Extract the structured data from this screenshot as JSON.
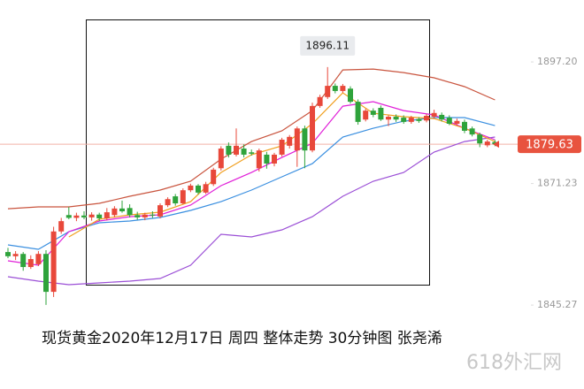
{
  "chart_data": {
    "type": "candlestick",
    "title": "现货黄金2020年12月17日 周四 整体走势  30分钟图 张尧浠",
    "watermark": "618外汇网",
    "up_color": "#e8483a",
    "down_color": "#2ea33b",
    "ylim": [
      1840,
      1911
    ],
    "yticks": [
      {
        "value": 1897.2,
        "label": "1897.20"
      },
      1871.23,
      1845.27
    ],
    "open": [
      1856.6,
      1855.7,
      1856.2,
      1853.4,
      1854.0,
      1856.2,
      1848.1,
      1861.0,
      1864.5,
      1863.9,
      1864.4,
      1864.0,
      1864.6,
      1863.8,
      1864.5,
      1865.9,
      1866.0,
      1864.5,
      1864.0,
      1864.6,
      1864.2,
      1866.6,
      1868.5,
      1867.0,
      1869.8,
      1870.8,
      1869.3,
      1871.1,
      1874.5,
      1879.3,
      1877.4,
      1878.7,
      1877.9,
      1874.5,
      1877.4,
      1875.5,
      1877.4,
      1879.3,
      1878.3,
      1883.0,
      1878.3,
      1887.8,
      1889.7,
      1892.1,
      1891.0,
      1891.5,
      1888.7,
      1884.9,
      1886.8,
      1887.4,
      1884.9,
      1885.5,
      1885.3,
      1884.4,
      1885.0,
      1884.7,
      1885.5,
      1885.9,
      1885.3,
      1884.0,
      1884.4,
      1883.0,
      1881.7,
      1879.4,
      1880.1
    ],
    "high": [
      1857.5,
      1856.8,
      1856.6,
      1855.9,
      1856.8,
      1857.0,
      1862.0,
      1863.9,
      1866.2,
      1865.0,
      1865.3,
      1865.1,
      1865.0,
      1866.0,
      1866.4,
      1867.6,
      1866.8,
      1865.2,
      1865.0,
      1865.3,
      1867.0,
      1868.3,
      1869.0,
      1870.2,
      1871.2,
      1871.1,
      1871.6,
      1874.6,
      1879.2,
      1880.0,
      1883.0,
      1879.6,
      1878.5,
      1878.7,
      1878.0,
      1877.8,
      1881.0,
      1881.6,
      1883.4,
      1883.6,
      1888.5,
      1890.2,
      1896.11,
      1892.6,
      1892.5,
      1892.0,
      1889.2,
      1887.2,
      1887.3,
      1887.9,
      1885.8,
      1886.0,
      1885.8,
      1885.7,
      1885.4,
      1886.1,
      1887.0,
      1886.4,
      1885.8,
      1885.1,
      1884.9,
      1883.4,
      1882.1,
      1880.6,
      1880.5
    ],
    "low": [
      1855.3,
      1854.9,
      1852.6,
      1853.0,
      1853.6,
      1845.3,
      1847.0,
      1860.5,
      1863.6,
      1863.2,
      1863.6,
      1863.3,
      1863.2,
      1863.4,
      1864.0,
      1865.0,
      1864.0,
      1863.5,
      1863.4,
      1863.9,
      1863.8,
      1866.2,
      1866.5,
      1866.8,
      1869.4,
      1868.9,
      1869.0,
      1870.7,
      1874.0,
      1876.8,
      1877.0,
      1876.8,
      1877.2,
      1873.8,
      1874.4,
      1874.9,
      1877.0,
      1878.7,
      1874.8,
      1874.5,
      1877.9,
      1887.4,
      1889.3,
      1890.5,
      1890.6,
      1888.3,
      1883.8,
      1884.5,
      1885.4,
      1884.6,
      1883.5,
      1884.4,
      1884.0,
      1884.0,
      1884.2,
      1884.3,
      1885.1,
      1884.5,
      1883.7,
      1883.6,
      1882.0,
      1881.3,
      1879.0,
      1879.0,
      1879.2
    ],
    "close": [
      1855.7,
      1856.2,
      1853.4,
      1855.1,
      1856.2,
      1848.1,
      1861.0,
      1863.2,
      1863.9,
      1864.4,
      1864.0,
      1864.6,
      1863.8,
      1865.1,
      1865.9,
      1865.3,
      1864.5,
      1864.0,
      1864.6,
      1864.4,
      1866.6,
      1867.9,
      1867.0,
      1869.8,
      1870.8,
      1869.3,
      1871.1,
      1874.2,
      1878.7,
      1877.4,
      1879.3,
      1877.4,
      1877.6,
      1878.3,
      1875.5,
      1877.4,
      1880.6,
      1881.2,
      1883.0,
      1878.3,
      1887.8,
      1889.7,
      1892.1,
      1891.0,
      1892.1,
      1888.7,
      1884.4,
      1886.8,
      1885.9,
      1884.9,
      1885.5,
      1884.9,
      1884.4,
      1885.3,
      1884.6,
      1885.7,
      1886.3,
      1884.9,
      1884.0,
      1884.6,
      1882.5,
      1881.7,
      1879.8,
      1880.2,
      1879.63
    ],
    "line_x": [
      0,
      4,
      8,
      12,
      16,
      20,
      24,
      28,
      32,
      36,
      40,
      44,
      48,
      52,
      56,
      60,
      64
    ],
    "lines": [
      {
        "color": "#c9543e",
        "values": [
          1865.86,
          1866.24,
          1866.24,
          1867.0,
          1868.51,
          1869.83,
          1871.72,
          1876.44,
          1880.21,
          1882.48,
          1886.82,
          1895.5,
          1895.69,
          1894.94,
          1893.81,
          1891.92,
          1889.09
        ]
      },
      {
        "color": "#3a8fe0",
        "values": [
          1858.12,
          1857.18,
          1860.95,
          1862.84,
          1863.22,
          1863.98,
          1865.49,
          1867.37,
          1869.83,
          1872.66,
          1875.49,
          1881.16,
          1883.04,
          1884.55,
          1885.31,
          1885.31,
          1883.61
        ]
      },
      {
        "color": "#e020d8",
        "values": [
          1854.72,
          1853.78,
          1860.95,
          1863.22,
          1864.16,
          1864.54,
          1866.62,
          1870.77,
          1873.6,
          1876.81,
          1879.83,
          1887.76,
          1888.71,
          1886.82,
          1885.88,
          1883.04,
          1880.59
        ]
      },
      {
        "color": "#9b4fd6",
        "values": [
          1851.33,
          1850.38,
          1849.63,
          1850.0,
          1850.38,
          1850.95,
          1853.78,
          1860.39,
          1859.82,
          1861.33,
          1864.16,
          1868.51,
          1871.72,
          1873.6,
          1877.95,
          1880.21,
          1881.16
        ]
      },
      {
        "color": "#f0a020",
        "values": [
          null,
          null,
          1859.82,
          1863.6,
          1864.54,
          1865.11,
          1867.37,
          1873.6,
          1877.38,
          1879.27,
          1883.99,
          1890.6,
          1886.25,
          1885.5,
          1885.12,
          1883.04,
          1880.21
        ]
      }
    ]
  }
}
